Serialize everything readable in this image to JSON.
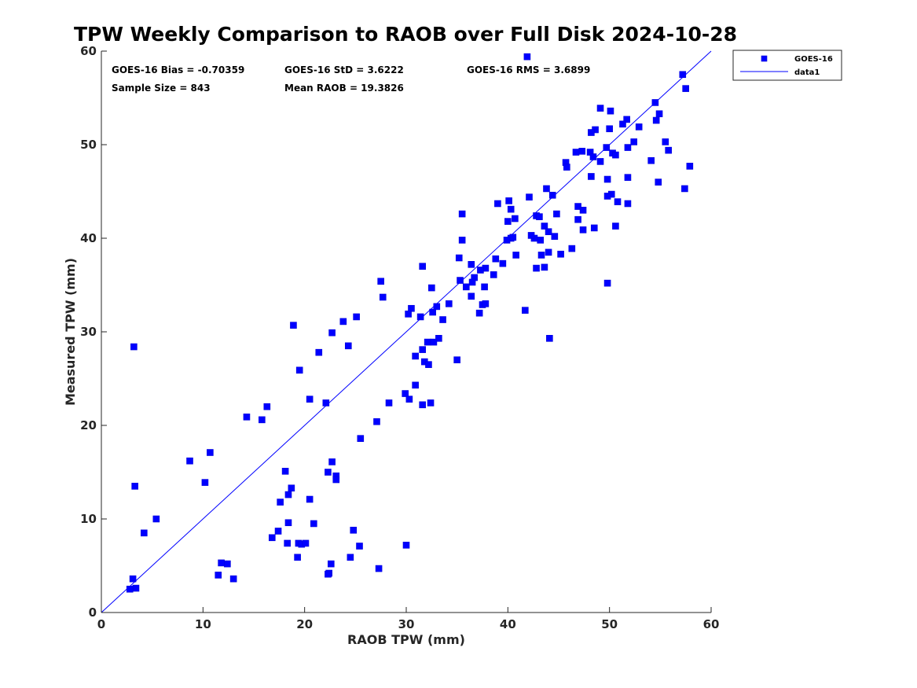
{
  "chart_data": {
    "type": "scatter",
    "title": "TPW Weekly Comparison to RAOB over Full Disk 2024-10-28",
    "xlabel": "RAOB TPW (mm)",
    "ylabel": "Measured TPW (mm)",
    "xlim": [
      0,
      60
    ],
    "ylim": [
      0,
      60
    ],
    "xticks": [
      "0",
      "10",
      "20",
      "30",
      "40",
      "50",
      "60"
    ],
    "yticks": [
      "0",
      "10",
      "20",
      "30",
      "40",
      "50",
      "60"
    ],
    "grid": false,
    "legend_position": "outside top-right",
    "stats": {
      "bias": "GOES-16 Bias = -0.70359",
      "std": "GOES-16 StD = 3.6222",
      "rms": "GOES-16 RMS = 3.6899",
      "sample": "Sample Size = 843",
      "mean": "Mean RAOB = 19.3826"
    },
    "colors": {
      "points": "#0000ff",
      "line": "#0000ff",
      "outline": "#0000dd"
    },
    "series": [
      {
        "name": "GOES-16",
        "marker": "square",
        "points": [
          [
            3.2,
            28.4
          ],
          [
            3.3,
            13.5
          ],
          [
            41.9,
            59.4
          ],
          [
            57.2,
            57.5
          ],
          [
            57.5,
            56
          ],
          [
            54.5,
            54.5
          ],
          [
            54.9,
            53.3
          ],
          [
            54.6,
            52.6
          ],
          [
            55.5,
            50.3
          ],
          [
            55.8,
            49.4
          ],
          [
            57.9,
            47.7
          ],
          [
            57.4,
            45.3
          ],
          [
            54.8,
            46
          ],
          [
            54.1,
            48.3
          ],
          [
            51.8,
            46.5
          ],
          [
            51.8,
            43.7
          ],
          [
            50.8,
            43.9
          ],
          [
            50.2,
            44.7
          ],
          [
            49.8,
            44.5
          ],
          [
            48.2,
            46.6
          ],
          [
            49.8,
            46.3
          ],
          [
            50.6,
            41.3
          ],
          [
            48.5,
            41.1
          ],
          [
            49.8,
            35.2
          ],
          [
            44.1,
            29.3
          ],
          [
            41.7,
            32.3
          ],
          [
            49.1,
            53.9
          ],
          [
            50.1,
            53.6
          ],
          [
            51.7,
            52.7
          ],
          [
            51.3,
            52.2
          ],
          [
            52.9,
            51.9
          ],
          [
            50,
            51.7
          ],
          [
            48.6,
            51.6
          ],
          [
            48.2,
            51.3
          ],
          [
            49.7,
            49.7
          ],
          [
            51.8,
            49.7
          ],
          [
            52.4,
            50.3
          ],
          [
            50.3,
            49.1
          ],
          [
            50.6,
            48.9
          ],
          [
            48.1,
            49.2
          ],
          [
            48.4,
            48.7
          ],
          [
            47.3,
            49.3
          ],
          [
            46.7,
            49.2
          ],
          [
            45.7,
            48.1
          ],
          [
            45.8,
            47.6
          ],
          [
            49.1,
            48.2
          ],
          [
            43.8,
            45.3
          ],
          [
            42.1,
            44.4
          ],
          [
            44.4,
            44.6
          ],
          [
            42.8,
            42.4
          ],
          [
            44.8,
            42.6
          ],
          [
            43.1,
            42.3
          ],
          [
            46.9,
            43.4
          ],
          [
            47.4,
            43
          ],
          [
            46.9,
            42
          ],
          [
            47.4,
            40.9
          ],
          [
            43.6,
            41.3
          ],
          [
            44,
            40.7
          ],
          [
            44.6,
            40.2
          ],
          [
            43.2,
            39.8
          ],
          [
            42.6,
            40
          ],
          [
            42.3,
            40.3
          ],
          [
            40.3,
            40
          ],
          [
            40.5,
            40.1
          ],
          [
            39.9,
            39.8
          ],
          [
            39,
            43.7
          ],
          [
            40.1,
            44
          ],
          [
            40.3,
            43.1
          ],
          [
            40.7,
            42.1
          ],
          [
            40,
            41.8
          ],
          [
            35.5,
            42.6
          ],
          [
            35.5,
            39.8
          ],
          [
            36.4,
            37.2
          ],
          [
            35.2,
            37.9
          ],
          [
            36.7,
            35.8
          ],
          [
            37.8,
            36.8
          ],
          [
            38.8,
            37.8
          ],
          [
            39.5,
            37.3
          ],
          [
            38.6,
            36.1
          ],
          [
            37.3,
            36.6
          ],
          [
            35.3,
            35.5
          ],
          [
            36.5,
            35.3
          ],
          [
            35.9,
            34.8
          ],
          [
            37.7,
            34.8
          ],
          [
            36.4,
            33.8
          ],
          [
            37.5,
            32.9
          ],
          [
            37.8,
            33
          ],
          [
            37.2,
            32
          ],
          [
            43.3,
            38.2
          ],
          [
            44,
            38.5
          ],
          [
            42.8,
            36.8
          ],
          [
            43.6,
            36.9
          ],
          [
            45.2,
            38.3
          ],
          [
            46.3,
            38.9
          ],
          [
            40.8,
            38.2
          ],
          [
            27.5,
            35.4
          ],
          [
            27.7,
            33.7
          ],
          [
            31.6,
            37
          ],
          [
            32.5,
            34.7
          ],
          [
            34.2,
            33
          ],
          [
            33,
            32.7
          ],
          [
            30.5,
            32.5
          ],
          [
            30.2,
            31.9
          ],
          [
            32.6,
            32.1
          ],
          [
            31.4,
            31.6
          ],
          [
            33.6,
            31.3
          ],
          [
            33.2,
            29.3
          ],
          [
            35,
            27
          ],
          [
            32.1,
            28.9
          ],
          [
            32.7,
            28.9
          ],
          [
            31.6,
            28.1
          ],
          [
            30.9,
            27.4
          ],
          [
            31.8,
            26.8
          ],
          [
            32.2,
            26.5
          ],
          [
            32.4,
            22.4
          ],
          [
            31.6,
            22.2
          ],
          [
            30.9,
            24.3
          ],
          [
            30.3,
            22.8
          ],
          [
            29.9,
            23.4
          ],
          [
            28.3,
            22.4
          ],
          [
            27.1,
            20.4
          ],
          [
            25.5,
            18.6
          ],
          [
            23.8,
            31.1
          ],
          [
            25.1,
            31.6
          ],
          [
            24.3,
            28.5
          ],
          [
            22.7,
            29.9
          ],
          [
            21.4,
            27.8
          ],
          [
            18.9,
            30.7
          ],
          [
            19.5,
            25.9
          ],
          [
            20.5,
            22.8
          ],
          [
            22.1,
            22.4
          ],
          [
            22.3,
            15
          ],
          [
            23.1,
            14.6
          ],
          [
            23.1,
            14.2
          ],
          [
            22.7,
            16.1
          ],
          [
            20.5,
            12.1
          ],
          [
            18.1,
            15.1
          ],
          [
            17.6,
            11.8
          ],
          [
            18.7,
            13.3
          ],
          [
            18.4,
            12.6
          ],
          [
            18.4,
            9.6
          ],
          [
            20.9,
            9.5
          ],
          [
            19.4,
            7.4
          ],
          [
            19.7,
            7.3
          ],
          [
            20.1,
            7.4
          ],
          [
            18.3,
            7.4
          ],
          [
            17.4,
            8.7
          ],
          [
            16.8,
            8
          ],
          [
            19.3,
            5.9
          ],
          [
            22.6,
            5.2
          ],
          [
            22.4,
            4.2
          ],
          [
            22.3,
            4.1
          ],
          [
            24.5,
            5.9
          ],
          [
            24.8,
            8.8
          ],
          [
            25.4,
            7.1
          ],
          [
            27.3,
            4.7
          ],
          [
            30,
            7.2
          ],
          [
            16.3,
            22
          ],
          [
            15.8,
            20.6
          ],
          [
            14.3,
            20.9
          ],
          [
            8.7,
            16.2
          ],
          [
            10.7,
            17.1
          ],
          [
            10.2,
            13.9
          ],
          [
            3.4,
            2.6
          ],
          [
            2.8,
            2.5
          ],
          [
            3.1,
            3.6
          ],
          [
            11.5,
            4
          ],
          [
            13,
            3.6
          ],
          [
            11.8,
            5.3
          ],
          [
            12.4,
            5.2
          ],
          [
            5.4,
            10
          ],
          [
            4.2,
            8.5
          ]
        ]
      }
    ],
    "line": {
      "name": "data1",
      "x": [
        0,
        60
      ],
      "y": [
        0,
        60
      ]
    }
  }
}
